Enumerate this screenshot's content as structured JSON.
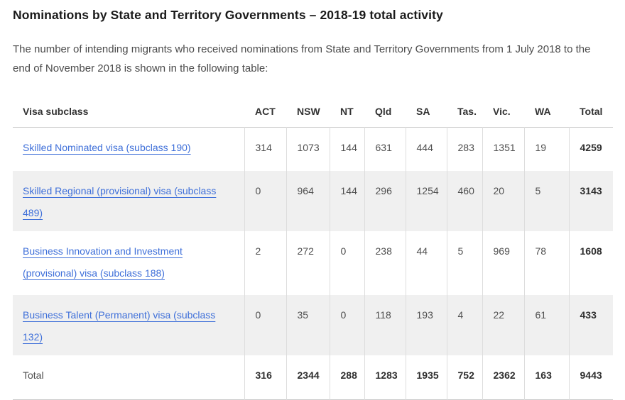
{
  "page": {
    "title": "Nominations by State and Territory Governments – 2018-19 total activity",
    "intro": "The number of intending migrants who received nominations from State and Territory Governments from 1 July 2018 to the end of November 2018 is shown in the following table:"
  },
  "table": {
    "columns": [
      "Visa subclass",
      "ACT",
      "NSW",
      "NT",
      "Qld",
      "SA",
      "Tas.",
      "Vic.",
      "WA",
      "Total"
    ],
    "rows": [
      {
        "label": "Skilled Nominated visa (subclass 190)",
        "is_link": true,
        "values": [
          314,
          1073,
          144,
          631,
          444,
          283,
          1351,
          19
        ],
        "total": 4259
      },
      {
        "label": "Skilled Regional (provisional) visa (subclass 489)",
        "is_link": true,
        "values": [
          0,
          964,
          144,
          296,
          1254,
          460,
          20,
          5
        ],
        "total": 3143
      },
      {
        "label": "Business Innovation and Investment (provisional) visa (subclass 188)",
        "is_link": true,
        "values": [
          2,
          272,
          0,
          238,
          44,
          5,
          969,
          78
        ],
        "total": 1608
      },
      {
        "label": "Business Talent (Permanent) visa (subclass 132)",
        "is_link": true,
        "values": [
          0,
          35,
          0,
          118,
          193,
          4,
          22,
          61
        ],
        "total": 433
      }
    ],
    "total_row": {
      "label": "Total",
      "values": [
        316,
        2344,
        288,
        1283,
        1935,
        752,
        2362,
        163
      ],
      "total": 9443
    }
  },
  "colors": {
    "link_blue": "#3e6fd9",
    "row_stripe": "#f0f0f0",
    "border_strong": "#cccccc",
    "border_light": "#dddddd",
    "text_dark": "#2e2e2e",
    "text_body": "#4f4f4f"
  }
}
